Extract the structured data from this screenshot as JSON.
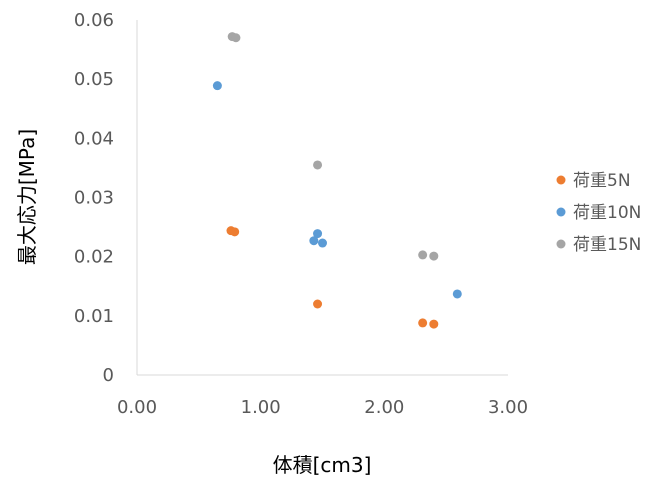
{
  "chart_data": {
    "type": "scatter",
    "xlabel": "体積[cm3]",
    "ylabel": "最大応力[MPa]",
    "xlim": [
      0,
      3
    ],
    "ylim": [
      0,
      0.06
    ],
    "x_ticks": [
      "0.00",
      "1.00",
      "2.00",
      "3.00"
    ],
    "y_ticks": [
      "0",
      "0.01",
      "0.02",
      "0.03",
      "0.04",
      "0.05",
      "0.06"
    ],
    "grid": false,
    "legend_position": "right",
    "series": [
      {
        "name": "荷重5N",
        "color": "#ED7D31",
        "points": [
          {
            "x": 0.76,
            "y": 0.0244
          },
          {
            "x": 0.79,
            "y": 0.0242
          },
          {
            "x": 1.46,
            "y": 0.012
          },
          {
            "x": 2.31,
            "y": 0.0088
          },
          {
            "x": 2.4,
            "y": 0.0086
          }
        ]
      },
      {
        "name": "荷重10N",
        "color": "#5B9BD5",
        "points": [
          {
            "x": 0.65,
            "y": 0.0489
          },
          {
            "x": 1.43,
            "y": 0.0227
          },
          {
            "x": 1.46,
            "y": 0.0239
          },
          {
            "x": 1.5,
            "y": 0.0223
          },
          {
            "x": 2.59,
            "y": 0.0137
          }
        ]
      },
      {
        "name": "荷重15N",
        "color": "#A5A5A5",
        "points": [
          {
            "x": 0.77,
            "y": 0.0572
          },
          {
            "x": 0.8,
            "y": 0.057
          },
          {
            "x": 1.46,
            "y": 0.0355
          },
          {
            "x": 2.31,
            "y": 0.0203
          },
          {
            "x": 2.4,
            "y": 0.0201
          }
        ]
      }
    ]
  }
}
